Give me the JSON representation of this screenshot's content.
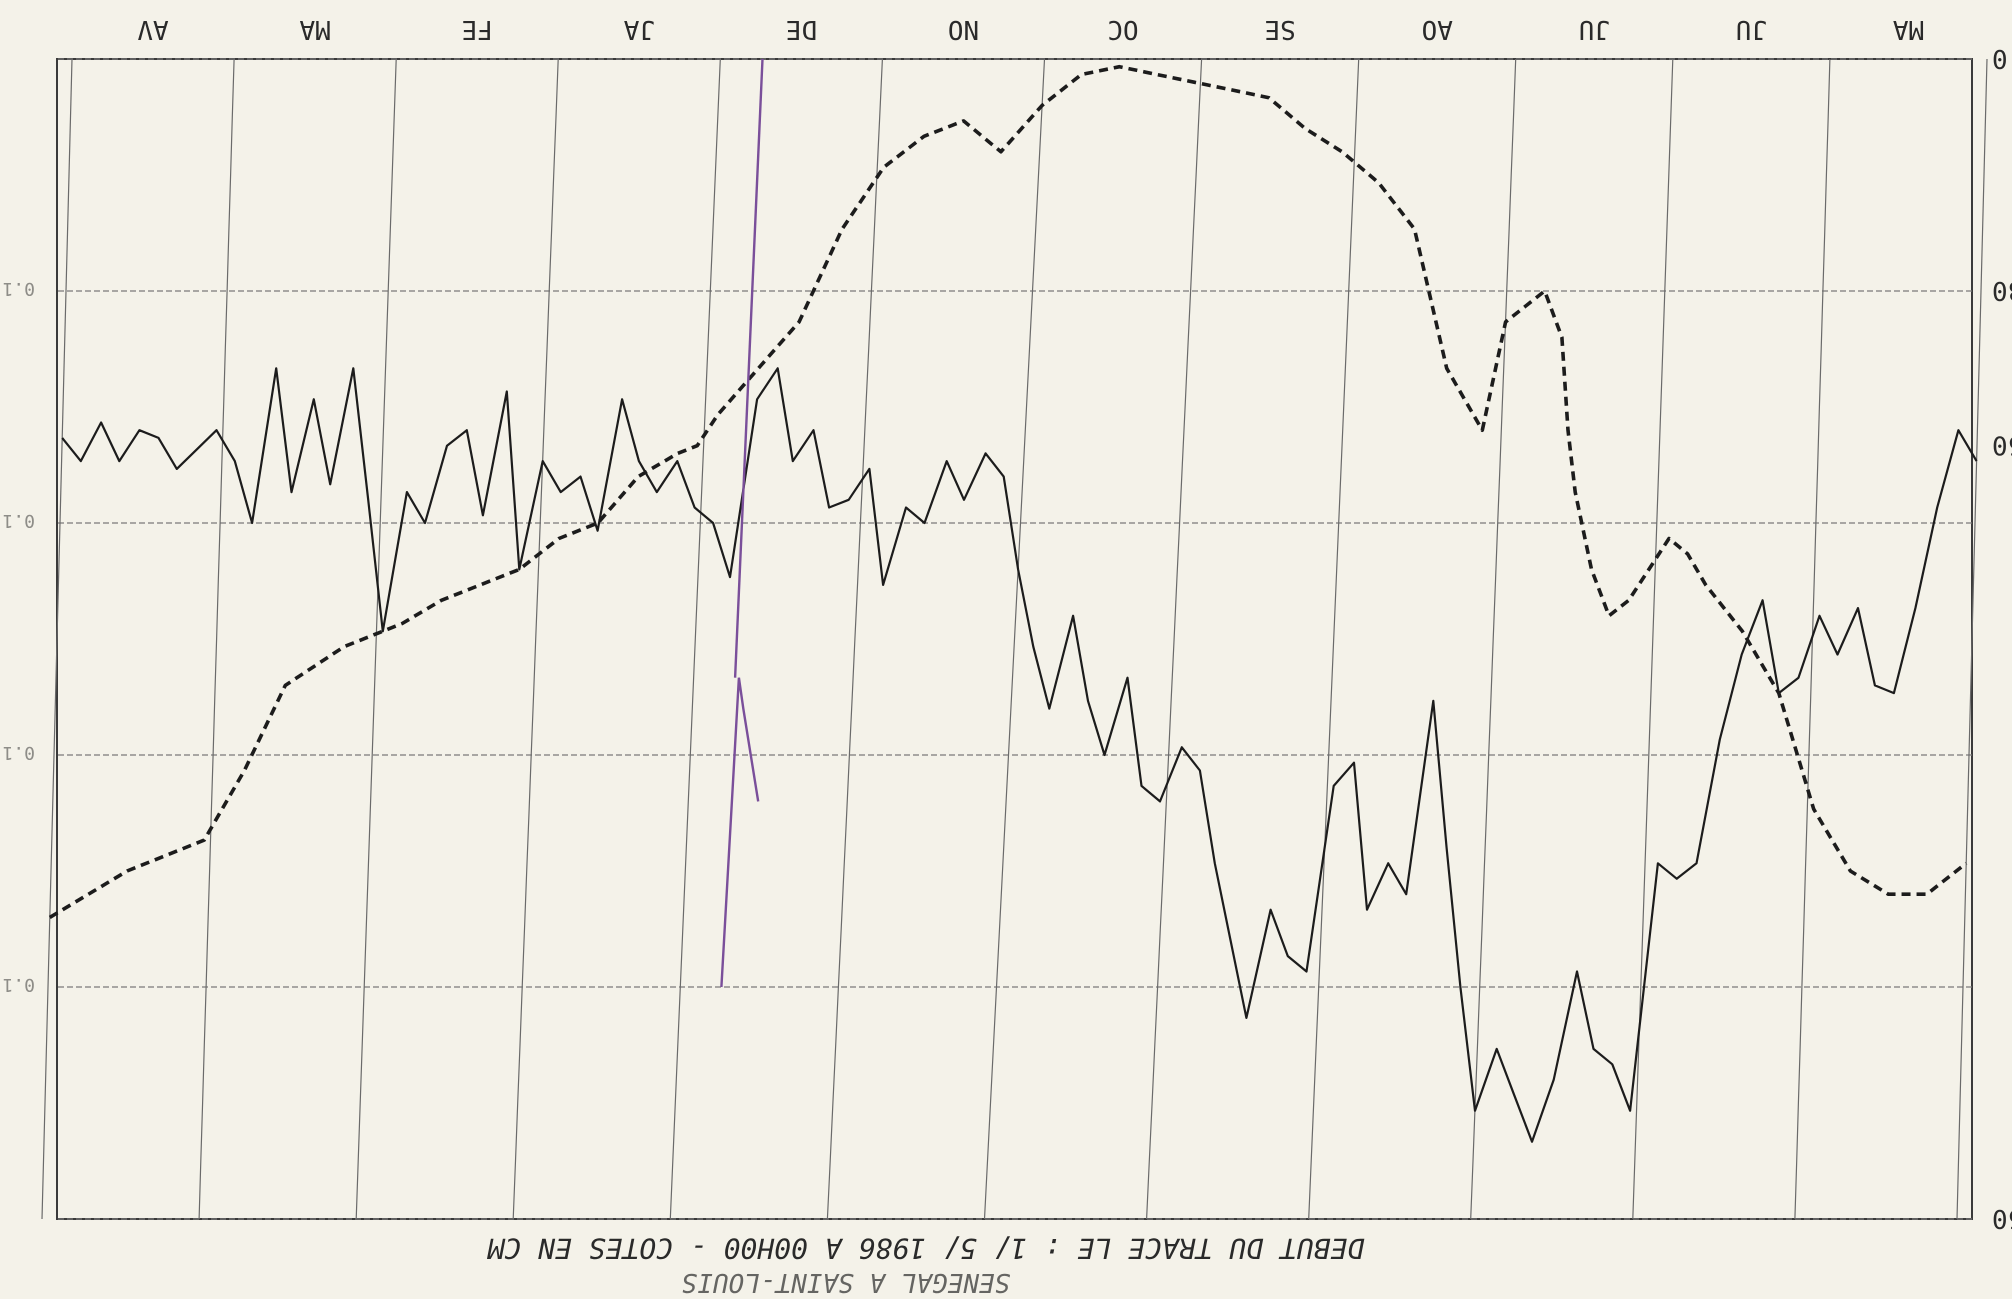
{
  "chart_data": {
    "type": "line",
    "title": "DEBUT DU TRACE LE :   1/ 5/ 1986 A 00H00 - COTES EN CM",
    "subtitle": "SENEGAL A SAINT-LOUIS",
    "month_labels": [
      "AV",
      "MA",
      "FE",
      "JA",
      "DE",
      "NO",
      "OC",
      "SE",
      "AO",
      "JU",
      "JU",
      "MA"
    ],
    "y_tick_labels": [
      "0",
      "30",
      "50",
      "150"
    ],
    "left_tick_labels": [
      "0.1",
      "0.1",
      "0.1",
      "0.1"
    ],
    "ylim": [
      0,
      150
    ],
    "yaxis_inverted": true,
    "grid": true,
    "series": [
      {
        "style": "solid",
        "x": [
          0.0,
          0.01,
          0.02,
          0.03,
          0.04,
          0.05,
          0.06,
          0.08,
          0.09,
          0.1,
          0.11,
          0.12,
          0.13,
          0.14,
          0.15,
          0.16,
          0.17,
          0.18,
          0.19,
          0.2,
          0.21,
          0.22,
          0.23,
          0.24,
          0.25,
          0.26,
          0.27,
          0.28,
          0.29,
          0.3,
          0.31,
          0.32,
          0.33,
          0.34,
          0.35,
          0.36,
          0.37,
          0.38,
          0.39,
          0.4,
          0.41,
          0.42,
          0.43,
          0.44,
          0.45,
          0.46,
          0.47,
          0.48,
          0.49,
          0.5,
          0.51,
          0.52,
          0.53,
          0.54,
          0.55,
          0.56,
          0.57,
          0.58,
          0.59,
          0.6,
          0.61,
          0.62,
          0.63,
          0.64,
          0.65,
          0.66,
          0.67,
          0.68,
          0.69,
          0.7,
          0.71,
          0.72,
          0.73,
          0.74,
          0.75,
          0.76,
          0.77,
          0.78,
          0.79,
          0.8,
          0.81,
          0.82,
          0.83,
          0.84,
          0.85,
          0.86,
          0.87,
          0.88,
          0.89,
          0.9,
          0.91,
          0.92,
          0.93,
          0.94,
          0.95,
          0.96,
          0.97,
          0.98,
          0.99,
          1.0
        ],
        "values": [
          49,
          52,
          47,
          52,
          48,
          49,
          53,
          48,
          52,
          60,
          40,
          56,
          44,
          55,
          40,
          57,
          74,
          56,
          60,
          50,
          48,
          59,
          43,
          66,
          52,
          56,
          54,
          61,
          44,
          52,
          56,
          52,
          58,
          60,
          67,
          44,
          40,
          52,
          48,
          58,
          57,
          53,
          68,
          58,
          60,
          52,
          57,
          51,
          54,
          66,
          76,
          84,
          72,
          83,
          90,
          80,
          94,
          96,
          89,
          92,
          104,
          114,
          124,
          110,
          116,
          118,
          94,
          91,
          110,
          104,
          108,
          83,
          102,
          120,
          136,
          128,
          134,
          140,
          132,
          118,
          128,
          130,
          136,
          104,
          106,
          104,
          88,
          77,
          70,
          82,
          80,
          72,
          77,
          71,
          81,
          82,
          71,
          58,
          48,
          52
        ]
      },
      {
        "style": "dashed",
        "x": [
          0.0,
          0.04,
          0.08,
          0.1,
          0.12,
          0.15,
          0.18,
          0.2,
          0.22,
          0.24,
          0.26,
          0.28,
          0.3,
          0.32,
          0.33,
          0.34,
          0.35,
          0.36,
          0.38,
          0.4,
          0.42,
          0.44,
          0.46,
          0.48,
          0.5,
          0.52,
          0.54,
          0.56,
          0.58,
          0.6,
          0.62,
          0.64,
          0.66,
          0.68,
          0.7,
          0.72,
          0.74,
          0.75,
          0.76,
          0.77,
          0.78,
          0.785,
          0.79,
          0.8,
          0.81,
          0.82,
          0.83,
          0.84,
          0.85,
          0.86,
          0.88,
          0.9,
          0.92,
          0.94,
          0.96,
          0.98,
          1.0
        ],
        "values": [
          111,
          105,
          101,
          92,
          81,
          76,
          73,
          70,
          68,
          66,
          62,
          60,
          54,
          51,
          50,
          46,
          43,
          40,
          34,
          22,
          14,
          10,
          8,
          12,
          6,
          2,
          1,
          2,
          3,
          4,
          5,
          9,
          12,
          16,
          22,
          40,
          48,
          34,
          32,
          30,
          36,
          48,
          56,
          66,
          72,
          70,
          66,
          62,
          64,
          68,
          74,
          82,
          97,
          105,
          108,
          108,
          104
        ]
      }
    ]
  }
}
